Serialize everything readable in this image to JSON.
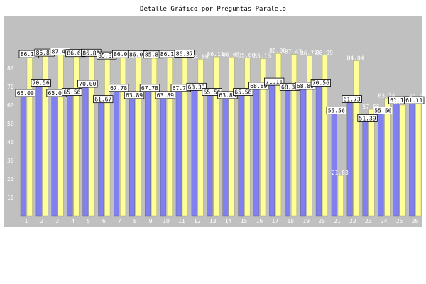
{
  "chart_data": {
    "type": "bar",
    "title": "Detalle Gráfico por Preguntas Paralelo",
    "categories": [
      "1",
      "2",
      "3",
      "4",
      "5",
      "6",
      "7",
      "8",
      "9",
      "10",
      "11",
      "12",
      "13",
      "14",
      "15",
      "16",
      "17",
      "18",
      "19",
      "20",
      "21",
      "22",
      "23",
      "24",
      "25",
      "26"
    ],
    "ylim": [
      0,
      100
    ],
    "yticks": [
      10,
      20,
      30,
      40,
      50,
      60,
      70,
      80
    ],
    "grid": false,
    "series": [
      {
        "color": "#8080f0",
        "values": [
          65.0,
          70.56,
          65.0,
          65.56,
          70.0,
          61.67,
          67.78,
          63.89,
          67.78,
          63.89,
          67.78,
          68.33,
          65.56,
          63.89,
          65.56,
          68.89,
          71.11,
          68.33,
          68.89,
          70.56,
          55.56,
          61.73,
          51.39,
          55.56,
          61.11,
          61.11
        ],
        "labels": [
          "65.00",
          "70.56",
          "65.00",
          "65.56",
          "70.00",
          "61.67",
          "67.78",
          "63.89",
          "67.78",
          "63.89",
          "67.78",
          "68.33",
          "65.56",
          "63.89",
          "65.56",
          "68.89",
          "71.11",
          "68.33",
          "68.89",
          "70.56",
          "55.56",
          "61.73",
          "51.39",
          "55.56",
          "61.11",
          "61.11"
        ],
        "boxed": [
          true,
          true,
          true,
          true,
          true,
          true,
          true,
          true,
          true,
          true,
          true,
          true,
          true,
          true,
          true,
          true,
          true,
          true,
          true,
          true,
          true,
          true,
          true,
          true,
          true,
          true
        ]
      },
      {
        "color": "#ffff99",
        "values": [
          86.11,
          86.88,
          87.47,
          86.65,
          86.81,
          85.33,
          86.06,
          86.05,
          85.87,
          86.11,
          86.37,
          84.86,
          86.11,
          86.05,
          85.6,
          85.16,
          88.0,
          87.47,
          86.77,
          86.99,
          21.83,
          84.04,
          57.66,
          63.74,
          60.0,
          62.91
        ],
        "labels": [
          "86.11",
          "86.88",
          "87.47",
          "86.65",
          "86.81",
          "85.33",
          "86.06",
          "86.05",
          "85.87",
          "86.11",
          "86.37",
          "84.86",
          "86.11",
          "86.05",
          "85.60",
          "85.16",
          "88.00",
          "87.47",
          "86.77",
          "86.99",
          "21.83",
          "84.04",
          "57.66",
          "63.74",
          "60.00",
          "62.91"
        ],
        "boxed": [
          true,
          true,
          true,
          true,
          true,
          true,
          true,
          true,
          true,
          true,
          true,
          false,
          false,
          false,
          false,
          false,
          false,
          false,
          false,
          false,
          false,
          false,
          false,
          false,
          false,
          false
        ]
      }
    ]
  }
}
